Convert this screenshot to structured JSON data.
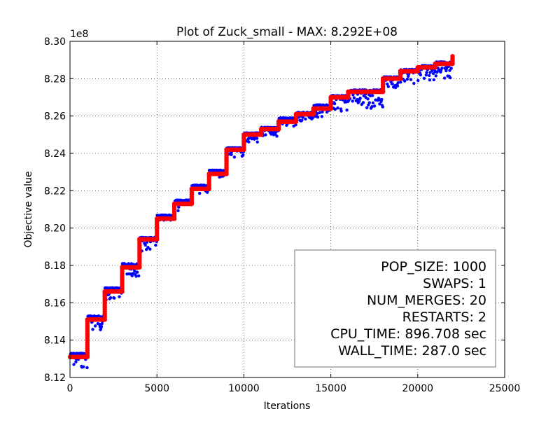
{
  "chart_data": {
    "type": "scatter",
    "title": "Plot of Zuck_small - MAX: 8.292E+08",
    "xlabel": "Iterations",
    "ylabel": "Objective value",
    "y_offset_label": "1e8",
    "xlim": [
      0,
      25000
    ],
    "ylim": [
      8.12,
      8.3
    ],
    "y_scale_factor": 100000000,
    "grid": true,
    "x_ticks": [
      "0",
      "5000",
      "10000",
      "15000",
      "20000",
      "25000"
    ],
    "y_ticks": [
      "8.12",
      "8.14",
      "8.16",
      "8.18",
      "8.20",
      "8.22",
      "8.24",
      "8.26",
      "8.28",
      "8.30"
    ],
    "series": [
      {
        "kind": "best",
        "color": "#ff0000",
        "steps": [
          {
            "x0": 0,
            "x1": 1000,
            "y": 8.131
          },
          {
            "x0": 1000,
            "x1": 2000,
            "y": 8.151
          },
          {
            "x0": 2000,
            "x1": 3000,
            "y": 8.166
          },
          {
            "x0": 3000,
            "x1": 4000,
            "y": 8.179
          },
          {
            "x0": 4000,
            "x1": 5000,
            "y": 8.194
          },
          {
            "x0": 5000,
            "x1": 6000,
            "y": 8.205
          },
          {
            "x0": 6000,
            "x1": 7000,
            "y": 8.213
          },
          {
            "x0": 7000,
            "x1": 8000,
            "y": 8.221
          },
          {
            "x0": 8000,
            "x1": 9000,
            "y": 8.229
          },
          {
            "x0": 9000,
            "x1": 10000,
            "y": 8.242
          },
          {
            "x0": 10000,
            "x1": 11000,
            "y": 8.25
          },
          {
            "x0": 11000,
            "x1": 12000,
            "y": 8.253
          },
          {
            "x0": 12000,
            "x1": 13000,
            "y": 8.257
          },
          {
            "x0": 13000,
            "x1": 14000,
            "y": 8.261
          },
          {
            "x0": 14000,
            "x1": 15000,
            "y": 8.264
          },
          {
            "x0": 15000,
            "x1": 16000,
            "y": 8.27
          },
          {
            "x0": 16000,
            "x1": 17000,
            "y": 8.273
          },
          {
            "x0": 17000,
            "x1": 18000,
            "y": 8.273
          },
          {
            "x0": 18000,
            "x1": 19000,
            "y": 8.28
          },
          {
            "x0": 19000,
            "x1": 20000,
            "y": 8.284
          },
          {
            "x0": 20000,
            "x1": 21000,
            "y": 8.286
          },
          {
            "x0": 21000,
            "x1": 22000,
            "y": 8.288
          }
        ],
        "end_value": 8.292
      },
      {
        "kind": "population",
        "color": "#0000ff",
        "segments": [
          {
            "x0": 0,
            "x1": 1000,
            "top": 8.133,
            "bottom": 8.125
          },
          {
            "x0": 1000,
            "x1": 2000,
            "top": 8.153,
            "bottom": 8.145
          },
          {
            "x0": 2000,
            "x1": 3000,
            "top": 8.168,
            "bottom": 8.16
          },
          {
            "x0": 3000,
            "x1": 4000,
            "top": 8.181,
            "bottom": 8.174
          },
          {
            "x0": 4000,
            "x1": 5000,
            "top": 8.195,
            "bottom": 8.187
          },
          {
            "x0": 5000,
            "x1": 6000,
            "top": 8.207,
            "bottom": 8.204
          },
          {
            "x0": 6000,
            "x1": 7000,
            "top": 8.215,
            "bottom": 8.209
          },
          {
            "x0": 7000,
            "x1": 8000,
            "top": 8.223,
            "bottom": 8.218
          },
          {
            "x0": 8000,
            "x1": 9000,
            "top": 8.231,
            "bottom": 8.227
          },
          {
            "x0": 9000,
            "x1": 10000,
            "top": 8.243,
            "bottom": 8.238
          },
          {
            "x0": 10000,
            "x1": 11000,
            "top": 8.251,
            "bottom": 8.246
          },
          {
            "x0": 11000,
            "x1": 12000,
            "top": 8.254,
            "bottom": 8.249
          },
          {
            "x0": 12000,
            "x1": 13000,
            "top": 8.259,
            "bottom": 8.254
          },
          {
            "x0": 13000,
            "x1": 14000,
            "top": 8.262,
            "bottom": 8.257
          },
          {
            "x0": 14000,
            "x1": 15000,
            "top": 8.266,
            "bottom": 8.259
          },
          {
            "x0": 15000,
            "x1": 16000,
            "top": 8.271,
            "bottom": 8.262
          },
          {
            "x0": 16000,
            "x1": 17000,
            "top": 8.274,
            "bottom": 8.266
          },
          {
            "x0": 17000,
            "x1": 18000,
            "top": 8.274,
            "bottom": 8.264
          },
          {
            "x0": 18000,
            "x1": 19000,
            "top": 8.281,
            "bottom": 8.275
          },
          {
            "x0": 19000,
            "x1": 20000,
            "top": 8.285,
            "bottom": 8.277
          },
          {
            "x0": 20000,
            "x1": 21000,
            "top": 8.287,
            "bottom": 8.278
          },
          {
            "x0": 21000,
            "x1": 22000,
            "top": 8.289,
            "bottom": 8.28
          }
        ]
      }
    ],
    "info_box": {
      "placement": "lower-right",
      "lines": [
        "POP_SIZE: 1000",
        "SWAPS: 1",
        "NUM_MERGES: 20",
        "RESTARTS: 2",
        "CPU_TIME: 896.708 sec",
        "WALL_TIME: 287.0 sec"
      ]
    }
  }
}
